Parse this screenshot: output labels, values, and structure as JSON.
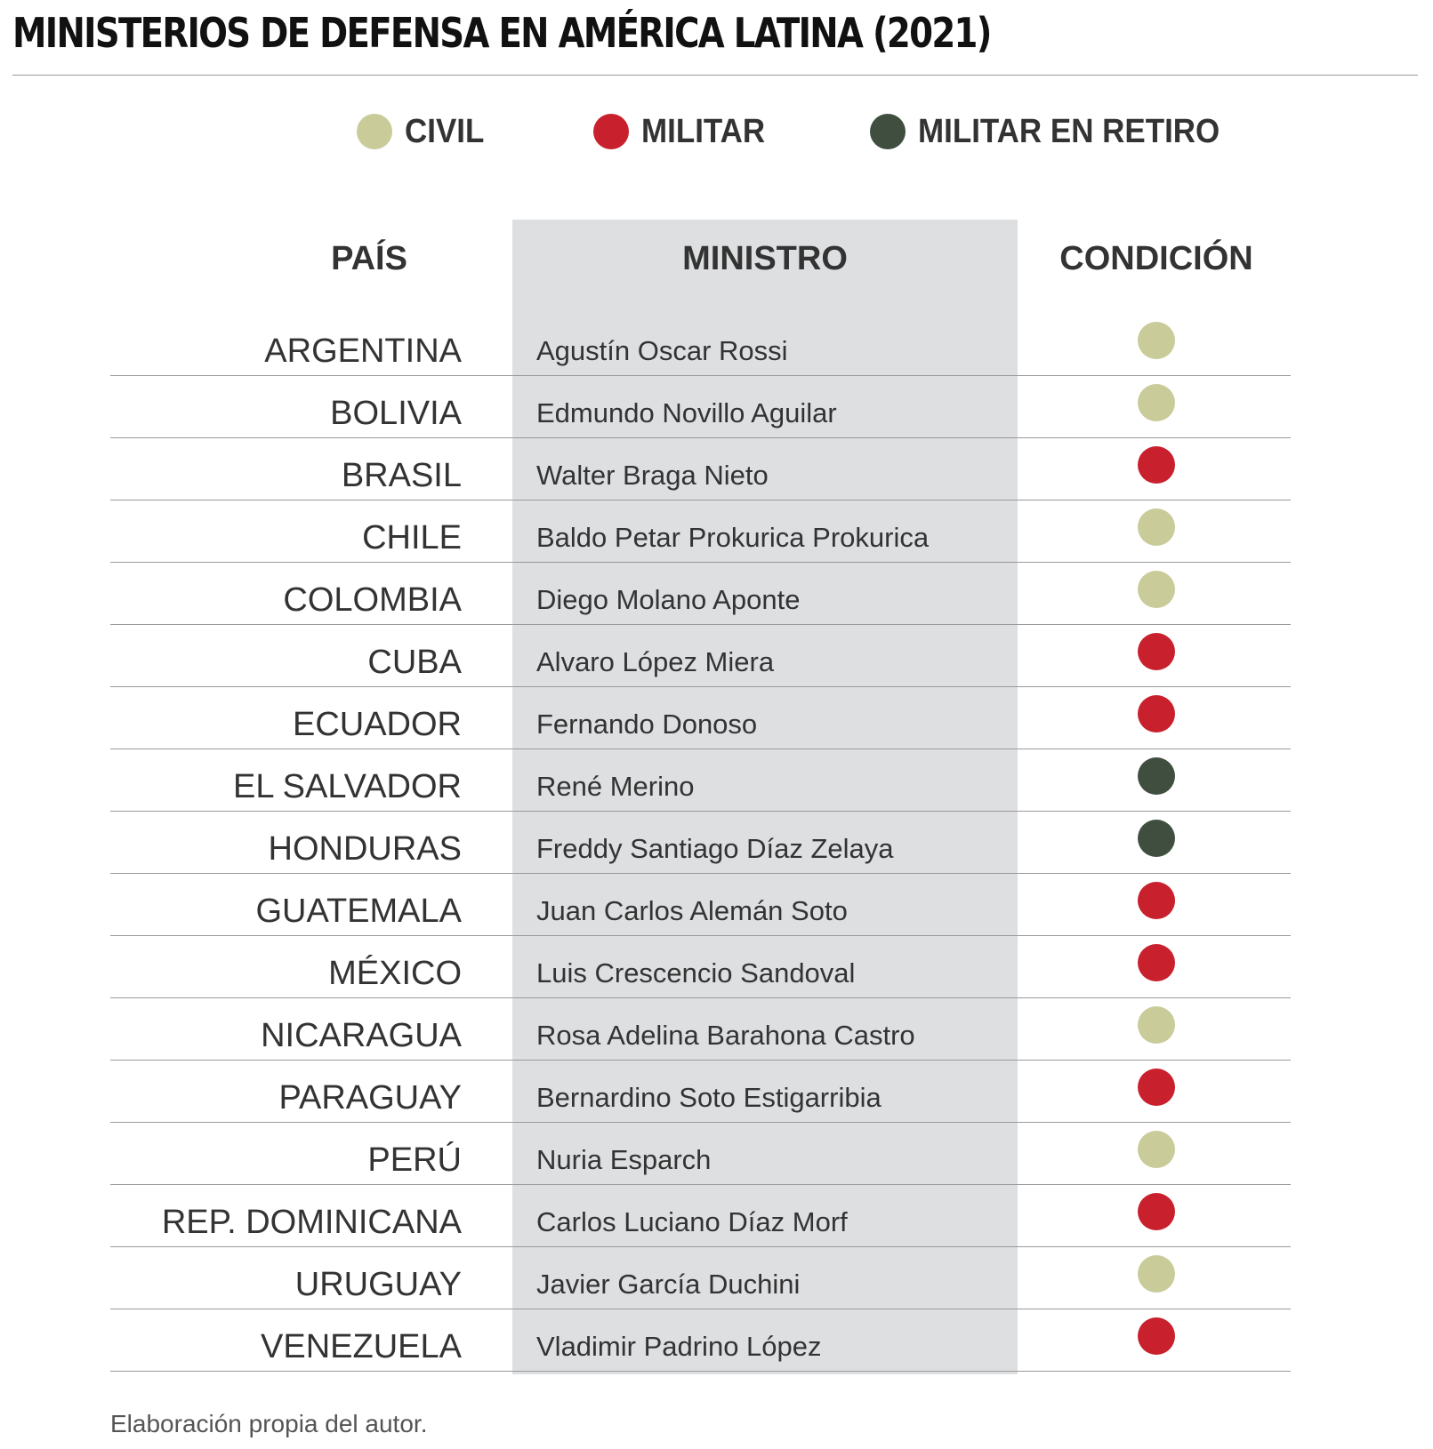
{
  "title": "MINISTERIOS DE DEFENSA EN AMÉRICA LATINA (2021)",
  "legend": [
    {
      "key": "civil",
      "label": "CIVIL",
      "color": "#c9cb99"
    },
    {
      "key": "militar",
      "label": "MILITAR",
      "color": "#c8202c"
    },
    {
      "key": "retiro",
      "label": "MILITAR EN RETIRO",
      "color": "#3f4e3f"
    }
  ],
  "headers": {
    "pais": "PAÍS",
    "ministro": "MINISTRO",
    "condicion": "CONDICIÓN"
  },
  "chart_data": {
    "type": "table",
    "title": "MINISTERIOS DE DEFENSA EN AMÉRICA LATINA (2021)",
    "columns": [
      "PAÍS",
      "MINISTRO",
      "CONDICIÓN"
    ],
    "rows": [
      {
        "pais": "ARGENTINA",
        "ministro": "Agustín Oscar Rossi",
        "condicion": "civil"
      },
      {
        "pais": "BOLIVIA",
        "ministro": "Edmundo Novillo Aguilar",
        "condicion": "civil"
      },
      {
        "pais": "BRASIL",
        "ministro": "Walter Braga Nieto",
        "condicion": "militar"
      },
      {
        "pais": "CHILE",
        "ministro": "Baldo Petar Prokurica Prokurica",
        "condicion": "civil"
      },
      {
        "pais": "COLOMBIA",
        "ministro": "Diego Molano Aponte",
        "condicion": "civil"
      },
      {
        "pais": "CUBA",
        "ministro": "Alvaro López Miera",
        "condicion": "militar"
      },
      {
        "pais": "ECUADOR",
        "ministro": "Fernando Donoso",
        "condicion": "militar"
      },
      {
        "pais": "EL SALVADOR",
        "ministro": "René Merino",
        "condicion": "retiro"
      },
      {
        "pais": "HONDURAS",
        "ministro": "Freddy Santiago Díaz Zelaya",
        "condicion": "retiro"
      },
      {
        "pais": "GUATEMALA",
        "ministro": "Juan Carlos Alemán Soto",
        "condicion": "militar"
      },
      {
        "pais": "MÉXICO",
        "ministro": "Luis Crescencio Sandoval",
        "condicion": "militar"
      },
      {
        "pais": "NICARAGUA",
        "ministro": "Rosa Adelina Barahona Castro",
        "condicion": "civil"
      },
      {
        "pais": "PARAGUAY",
        "ministro": "Bernardino Soto Estigarribia",
        "condicion": "militar"
      },
      {
        "pais": "PERÚ",
        "ministro": "Nuria Esparch",
        "condicion": "civil"
      },
      {
        "pais": "REP. DOMINICANA",
        "ministro": "Carlos Luciano Díaz Morf",
        "condicion": "militar"
      },
      {
        "pais": "URUGUAY",
        "ministro": "Javier García Duchini",
        "condicion": "civil"
      },
      {
        "pais": "VENEZUELA",
        "ministro": "Vladimir Padrino López",
        "condicion": "militar"
      }
    ]
  },
  "source": "Elaboración propia del autor."
}
